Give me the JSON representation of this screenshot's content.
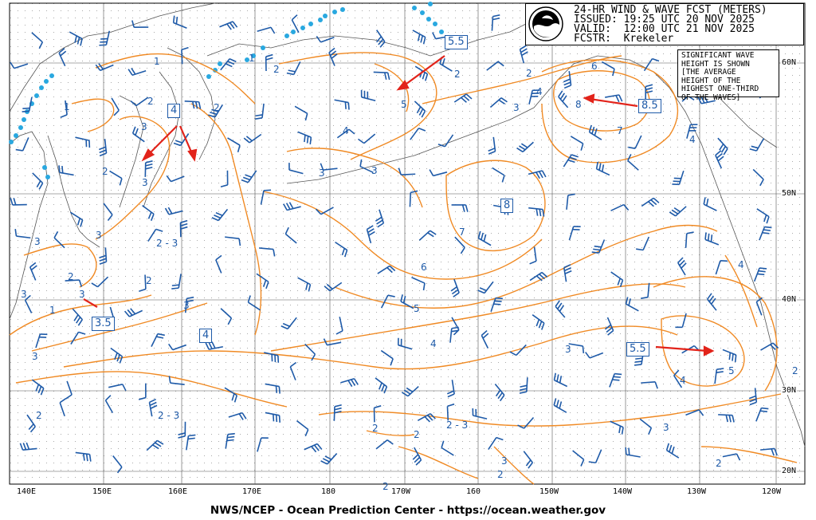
{
  "header": {
    "line1": "24-HR WIND & WAVE FCST (METERS)",
    "line2": "ISSUED: 19:25 UTC 20 NOV 2025",
    "line3": "VALID:  12:00 UTC 21 NOV 2025",
    "line4": "FCSTR:  Krekeler",
    "logo_text": "NOAA"
  },
  "legend": {
    "l1": "SIGNIFICANT WAVE",
    "l2": "HEIGHT IS SHOWN",
    "l3": "[THE AVERAGE",
    "l4": "HEIGHT OF THE",
    "l5": "HIGHEST ONE-THIRD",
    "l6": "OF THE WAVES]"
  },
  "footer": "NWS/NCEP - Ocean Prediction Center - https://ocean.weather.gov",
  "longitudes": [
    "140E",
    "150E",
    "160E",
    "170E",
    "180",
    "170W",
    "160",
    "150W",
    "140W",
    "130W",
    "120W"
  ],
  "latitudes": [
    "60N",
    "50N",
    "40N",
    "30N",
    "20N"
  ],
  "boxed_labels": [
    "5.5",
    "4",
    "8.5",
    "8",
    "3.5",
    "4",
    "5.5"
  ],
  "contour_labels": [
    "1",
    "1",
    "1",
    "2",
    "1",
    "2",
    "2",
    "2",
    "2",
    "2",
    "3",
    "3",
    "3",
    "3",
    "3",
    "4",
    "4",
    "4",
    "4",
    "5",
    "5",
    "6",
    "6",
    "7",
    "7",
    "8",
    "2",
    "2",
    "3",
    "3",
    "3",
    "2 - 3",
    "2 - 3",
    "2 - 3",
    "2",
    "2",
    "2",
    "3",
    "4",
    "5",
    "2",
    "2",
    "3",
    "3",
    "4",
    "2",
    "2",
    "3",
    "3",
    "3"
  ],
  "colors": {
    "contour": "#f08a24",
    "wind_barb": "#1e5aa8",
    "coast": "#555555",
    "ice": "#29a8e0",
    "arrow": "#e2231a",
    "grid_dot": "#999999"
  }
}
